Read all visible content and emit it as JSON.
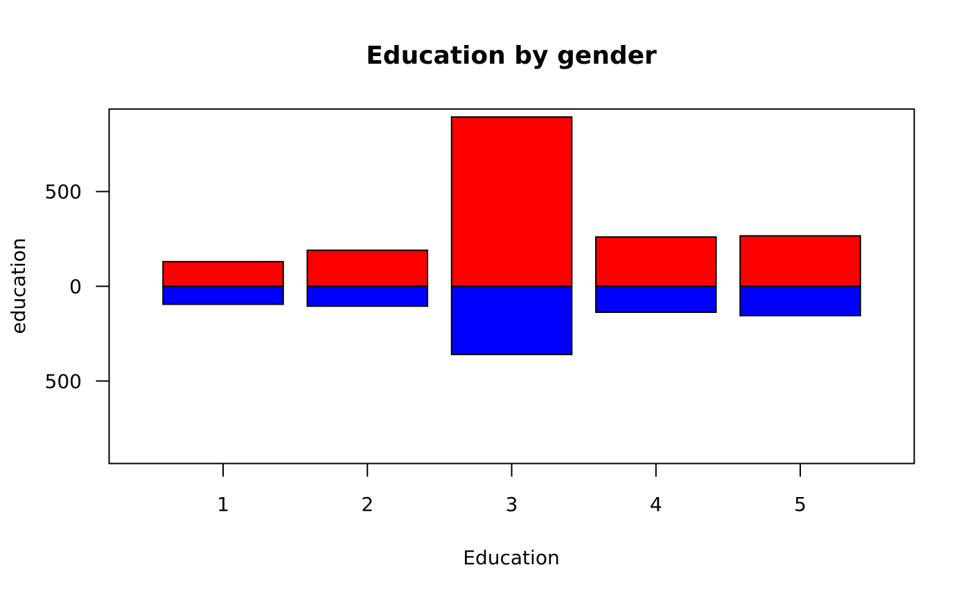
{
  "chart_data": {
    "type": "bar",
    "title": "Education by gender",
    "xlabel": "Education",
    "ylabel": "education",
    "categories": [
      "1",
      "2",
      "3",
      "4",
      "5"
    ],
    "series": [
      {
        "values": [
          130,
          190,
          893,
          260,
          266
        ],
        "color": "#ff0000"
      },
      {
        "values": [
          -95,
          -105,
          -360,
          -137,
          -155
        ],
        "color": "#0000ff"
      }
    ],
    "ylim": [
      -935,
      935
    ],
    "y_ticks": [
      {
        "value": 500,
        "label": "500"
      },
      {
        "value": 0,
        "label": "0"
      },
      {
        "value": -500,
        "label": "500"
      }
    ],
    "stacking": "diverging",
    "grid": false,
    "legend": "none"
  }
}
